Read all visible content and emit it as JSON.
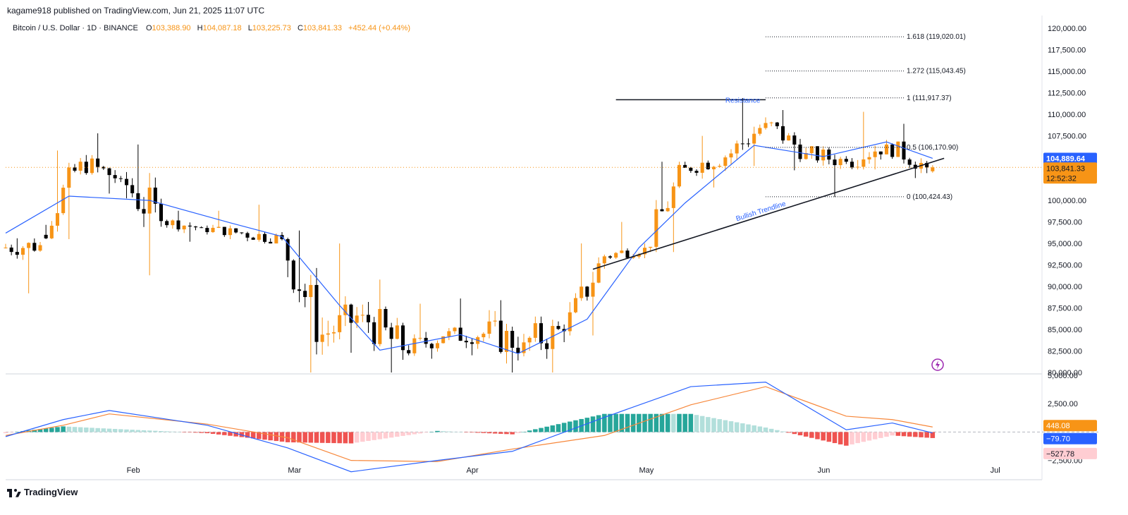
{
  "header": {
    "published": "kagame918 published on TradingView.com, Jun 21, 2025 11:07 UTC"
  },
  "legend": {
    "symbol": "Bitcoin / U.S. Dollar · 1D · BINANCE",
    "o_label": "O",
    "o": "103,388.90",
    "h_label": "H",
    "h": "104,087.18",
    "l_label": "L",
    "l": "103,225.73",
    "c_label": "C",
    "c": "103,841.33",
    "change": "+452.44 (+0.44%)"
  },
  "price_axis": {
    "ticks": [
      "120,000.00",
      "117,500.00",
      "115,000.00",
      "112,500.00",
      "110,000.00",
      "107,500.00",
      "105,000.00",
      "102,500.00",
      "100,000.00",
      "97,500.00",
      "95,000.00",
      "92,500.00",
      "90,000.00",
      "87,500.00",
      "85,000.00",
      "82,500.00",
      "80,000.00"
    ],
    "tick_values": [
      120000,
      117500,
      115000,
      112500,
      110000,
      107500,
      105000,
      102500,
      100000,
      97500,
      95000,
      92500,
      90000,
      87500,
      85000,
      82500,
      80000
    ],
    "badge_ma": "104,889.64",
    "badge_price": "103,841.33",
    "badge_timer": "12:52:32"
  },
  "macd_axis": {
    "ticks": [
      "5,000.00",
      "2,500.00",
      "−2,500.00"
    ],
    "tick_values": [
      5000,
      2500,
      -2500
    ],
    "badge_signal": "448.08",
    "badge_macd": "−79.70",
    "badge_hist": "−527.78"
  },
  "time_axis": {
    "labels": [
      "Feb",
      "Mar",
      "Apr",
      "May",
      "Jun",
      "Jul"
    ]
  },
  "annotations": {
    "resistance": "Resistance",
    "trendline": "Bullish Trendline",
    "fib": [
      {
        "label": "1.618 (119,020.01)",
        "price": 119020.01
      },
      {
        "label": "1.272 (115,043.45)",
        "price": 115043.45
      },
      {
        "label": "1 (111,917.37)",
        "price": 111917.37
      },
      {
        "label": "0.5 (106,170.90)",
        "price": 106170.9
      },
      {
        "label": "0 (100,424.43)",
        "price": 100424.43
      }
    ],
    "resistance_price": 111700
  },
  "colors": {
    "up": "#f79416",
    "down": "#000000",
    "ma": "#2962ff",
    "signal": "#f7873a",
    "hist_up_strong": "#26a69a",
    "hist_up_weak": "#b2dfdb",
    "hist_down_strong": "#ef5350",
    "hist_down_weak": "#ffcdd2"
  },
  "footer": {
    "brand": "TradingView"
  },
  "chart_data": {
    "type": "candlestick",
    "title": "Bitcoin / U.S. Dollar · 1D · BINANCE",
    "ylim": [
      80000,
      121000
    ],
    "x_range": [
      "2025-01-10",
      "2025-07-09"
    ],
    "candles_weekly_approx": [
      {
        "date": "2025-01-10",
        "o": 94500,
        "c": 94800,
        "h": 95600,
        "l": 89200
      },
      {
        "date": "2025-01-17",
        "o": 96000,
        "c": 104500,
        "h": 105800,
        "l": 95500
      },
      {
        "date": "2025-01-24",
        "o": 104500,
        "c": 102500,
        "h": 107800,
        "l": 100800
      },
      {
        "date": "2025-01-31",
        "o": 102500,
        "c": 97600,
        "h": 106500,
        "l": 91300
      },
      {
        "date": "2025-02-07",
        "o": 97600,
        "c": 96800,
        "h": 98800,
        "l": 95200
      },
      {
        "date": "2025-02-14",
        "o": 96800,
        "c": 96200,
        "h": 98800,
        "l": 95500
      },
      {
        "date": "2025-02-21",
        "o": 96200,
        "c": 95500,
        "h": 99500,
        "l": 95000
      },
      {
        "date": "2025-02-28",
        "o": 95500,
        "c": 84400,
        "h": 96500,
        "l": 78200
      },
      {
        "date": "2025-03-07",
        "o": 84400,
        "c": 86700,
        "h": 95000,
        "l": 82300
      },
      {
        "date": "2025-03-14",
        "o": 86700,
        "c": 82600,
        "h": 90800,
        "l": 76600
      },
      {
        "date": "2025-03-21",
        "o": 82600,
        "c": 84200,
        "h": 88000,
        "l": 81600
      },
      {
        "date": "2025-03-28",
        "o": 84200,
        "c": 84500,
        "h": 88600,
        "l": 82000
      },
      {
        "date": "2025-04-04",
        "o": 84500,
        "c": 83500,
        "h": 88400,
        "l": 76800
      },
      {
        "date": "2025-04-11",
        "o": 83500,
        "c": 84800,
        "h": 86500,
        "l": 75000
      },
      {
        "date": "2025-04-18",
        "o": 84800,
        "c": 93500,
        "h": 95000,
        "l": 84300
      },
      {
        "date": "2025-04-25",
        "o": 93500,
        "c": 94500,
        "h": 97500,
        "l": 93200
      },
      {
        "date": "2025-05-02",
        "o": 94500,
        "c": 103800,
        "h": 104500,
        "l": 94000
      },
      {
        "date": "2025-05-09",
        "o": 103800,
        "c": 105000,
        "h": 107500,
        "l": 101500
      },
      {
        "date": "2025-05-16",
        "o": 105000,
        "c": 109000,
        "h": 111900,
        "l": 104000
      },
      {
        "date": "2025-05-23",
        "o": 109000,
        "c": 105500,
        "h": 110500,
        "l": 103500
      },
      {
        "date": "2025-05-30",
        "o": 105500,
        "c": 104500,
        "h": 106300,
        "l": 100400
      },
      {
        "date": "2025-06-06",
        "o": 104500,
        "c": 106500,
        "h": 110300,
        "l": 103600
      },
      {
        "date": "2025-06-13",
        "o": 106500,
        "c": 103841,
        "h": 108900,
        "l": 102600
      },
      {
        "date": "2025-06-20",
        "o": 103388,
        "c": 103841,
        "h": 104087,
        "l": 103225
      }
    ],
    "moving_average": {
      "dates": [
        "2025-01-10",
        "2025-01-21",
        "2025-02-04",
        "2025-02-18",
        "2025-02-27",
        "2025-03-09",
        "2025-03-16",
        "2025-03-30",
        "2025-04-09",
        "2025-04-21",
        "2025-04-30",
        "2025-05-08",
        "2025-05-20",
        "2025-06-01",
        "2025-06-12",
        "2025-06-20"
      ],
      "values": [
        96200,
        100500,
        100000,
        97400,
        95800,
        87800,
        82600,
        84400,
        82200,
        86200,
        94500,
        99700,
        106400,
        105100,
        106800,
        104889.64
      ]
    },
    "macd": {
      "dates": [
        "2025-01-10",
        "2025-01-20",
        "2025-01-28",
        "2025-02-14",
        "2025-02-28",
        "2025-03-11",
        "2025-03-26",
        "2025-04-08",
        "2025-04-24",
        "2025-05-09",
        "2025-05-22",
        "2025-06-05",
        "2025-06-13",
        "2025-06-20"
      ],
      "macd": [
        -400,
        1100,
        1900,
        600,
        -1400,
        -3500,
        -2500,
        -1700,
        1300,
        4000,
        4400,
        200,
        800,
        -79.7
      ],
      "signal": [
        -300,
        600,
        1600,
        700,
        -500,
        -2500,
        -2600,
        -1500,
        -300,
        2400,
        4000,
        1400,
        1100,
        448.08
      ],
      "histogram_last": -527.78
    }
  }
}
